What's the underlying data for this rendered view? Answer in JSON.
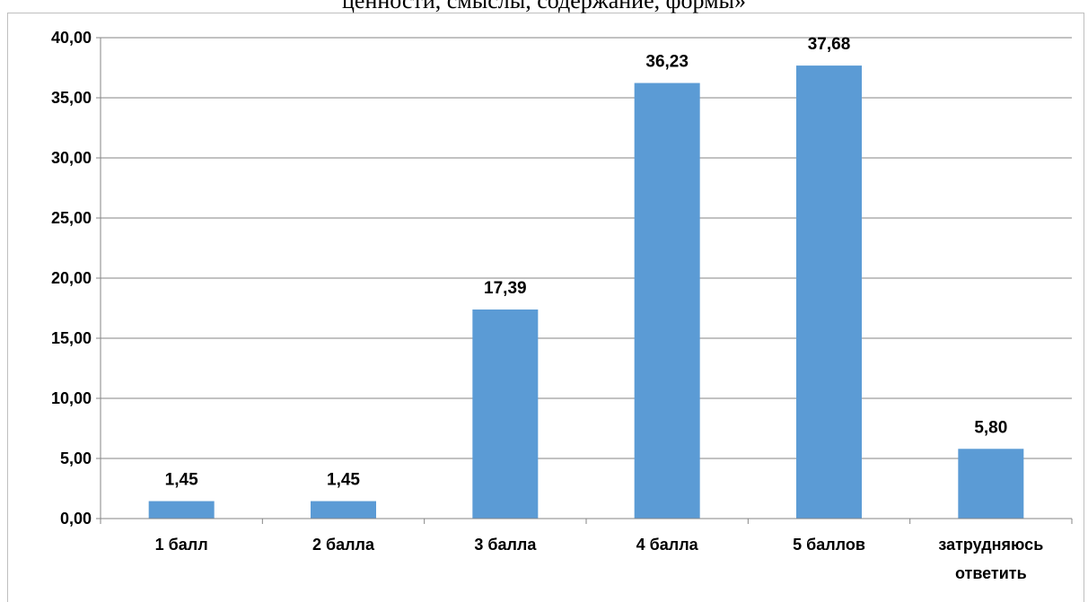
{
  "chart_data": {
    "type": "bar",
    "title": "ценности, смыслы, содержание, формы»",
    "categories": [
      "1 балл",
      "2 балла",
      "3 балла",
      "4 балла",
      "5 баллов",
      "затрудняюсь ответить"
    ],
    "values": [
      1.45,
      1.45,
      17.39,
      36.23,
      37.68,
      5.8
    ],
    "data_labels": [
      "1,45",
      "1,45",
      "17,39",
      "36,23",
      "37,68",
      "5,80"
    ],
    "y_ticks": [
      0,
      5,
      10,
      15,
      20,
      25,
      30,
      35,
      40
    ],
    "y_tick_labels": [
      "0,00",
      "5,00",
      "10,00",
      "15,00",
      "20,00",
      "25,00",
      "30,00",
      "35,00",
      "40,00"
    ],
    "ylim": [
      0,
      40
    ],
    "xlabel": "",
    "ylabel": "",
    "grid": true,
    "legend": "none",
    "bar_color": "#5B9BD5",
    "grid_color": "#868686"
  }
}
